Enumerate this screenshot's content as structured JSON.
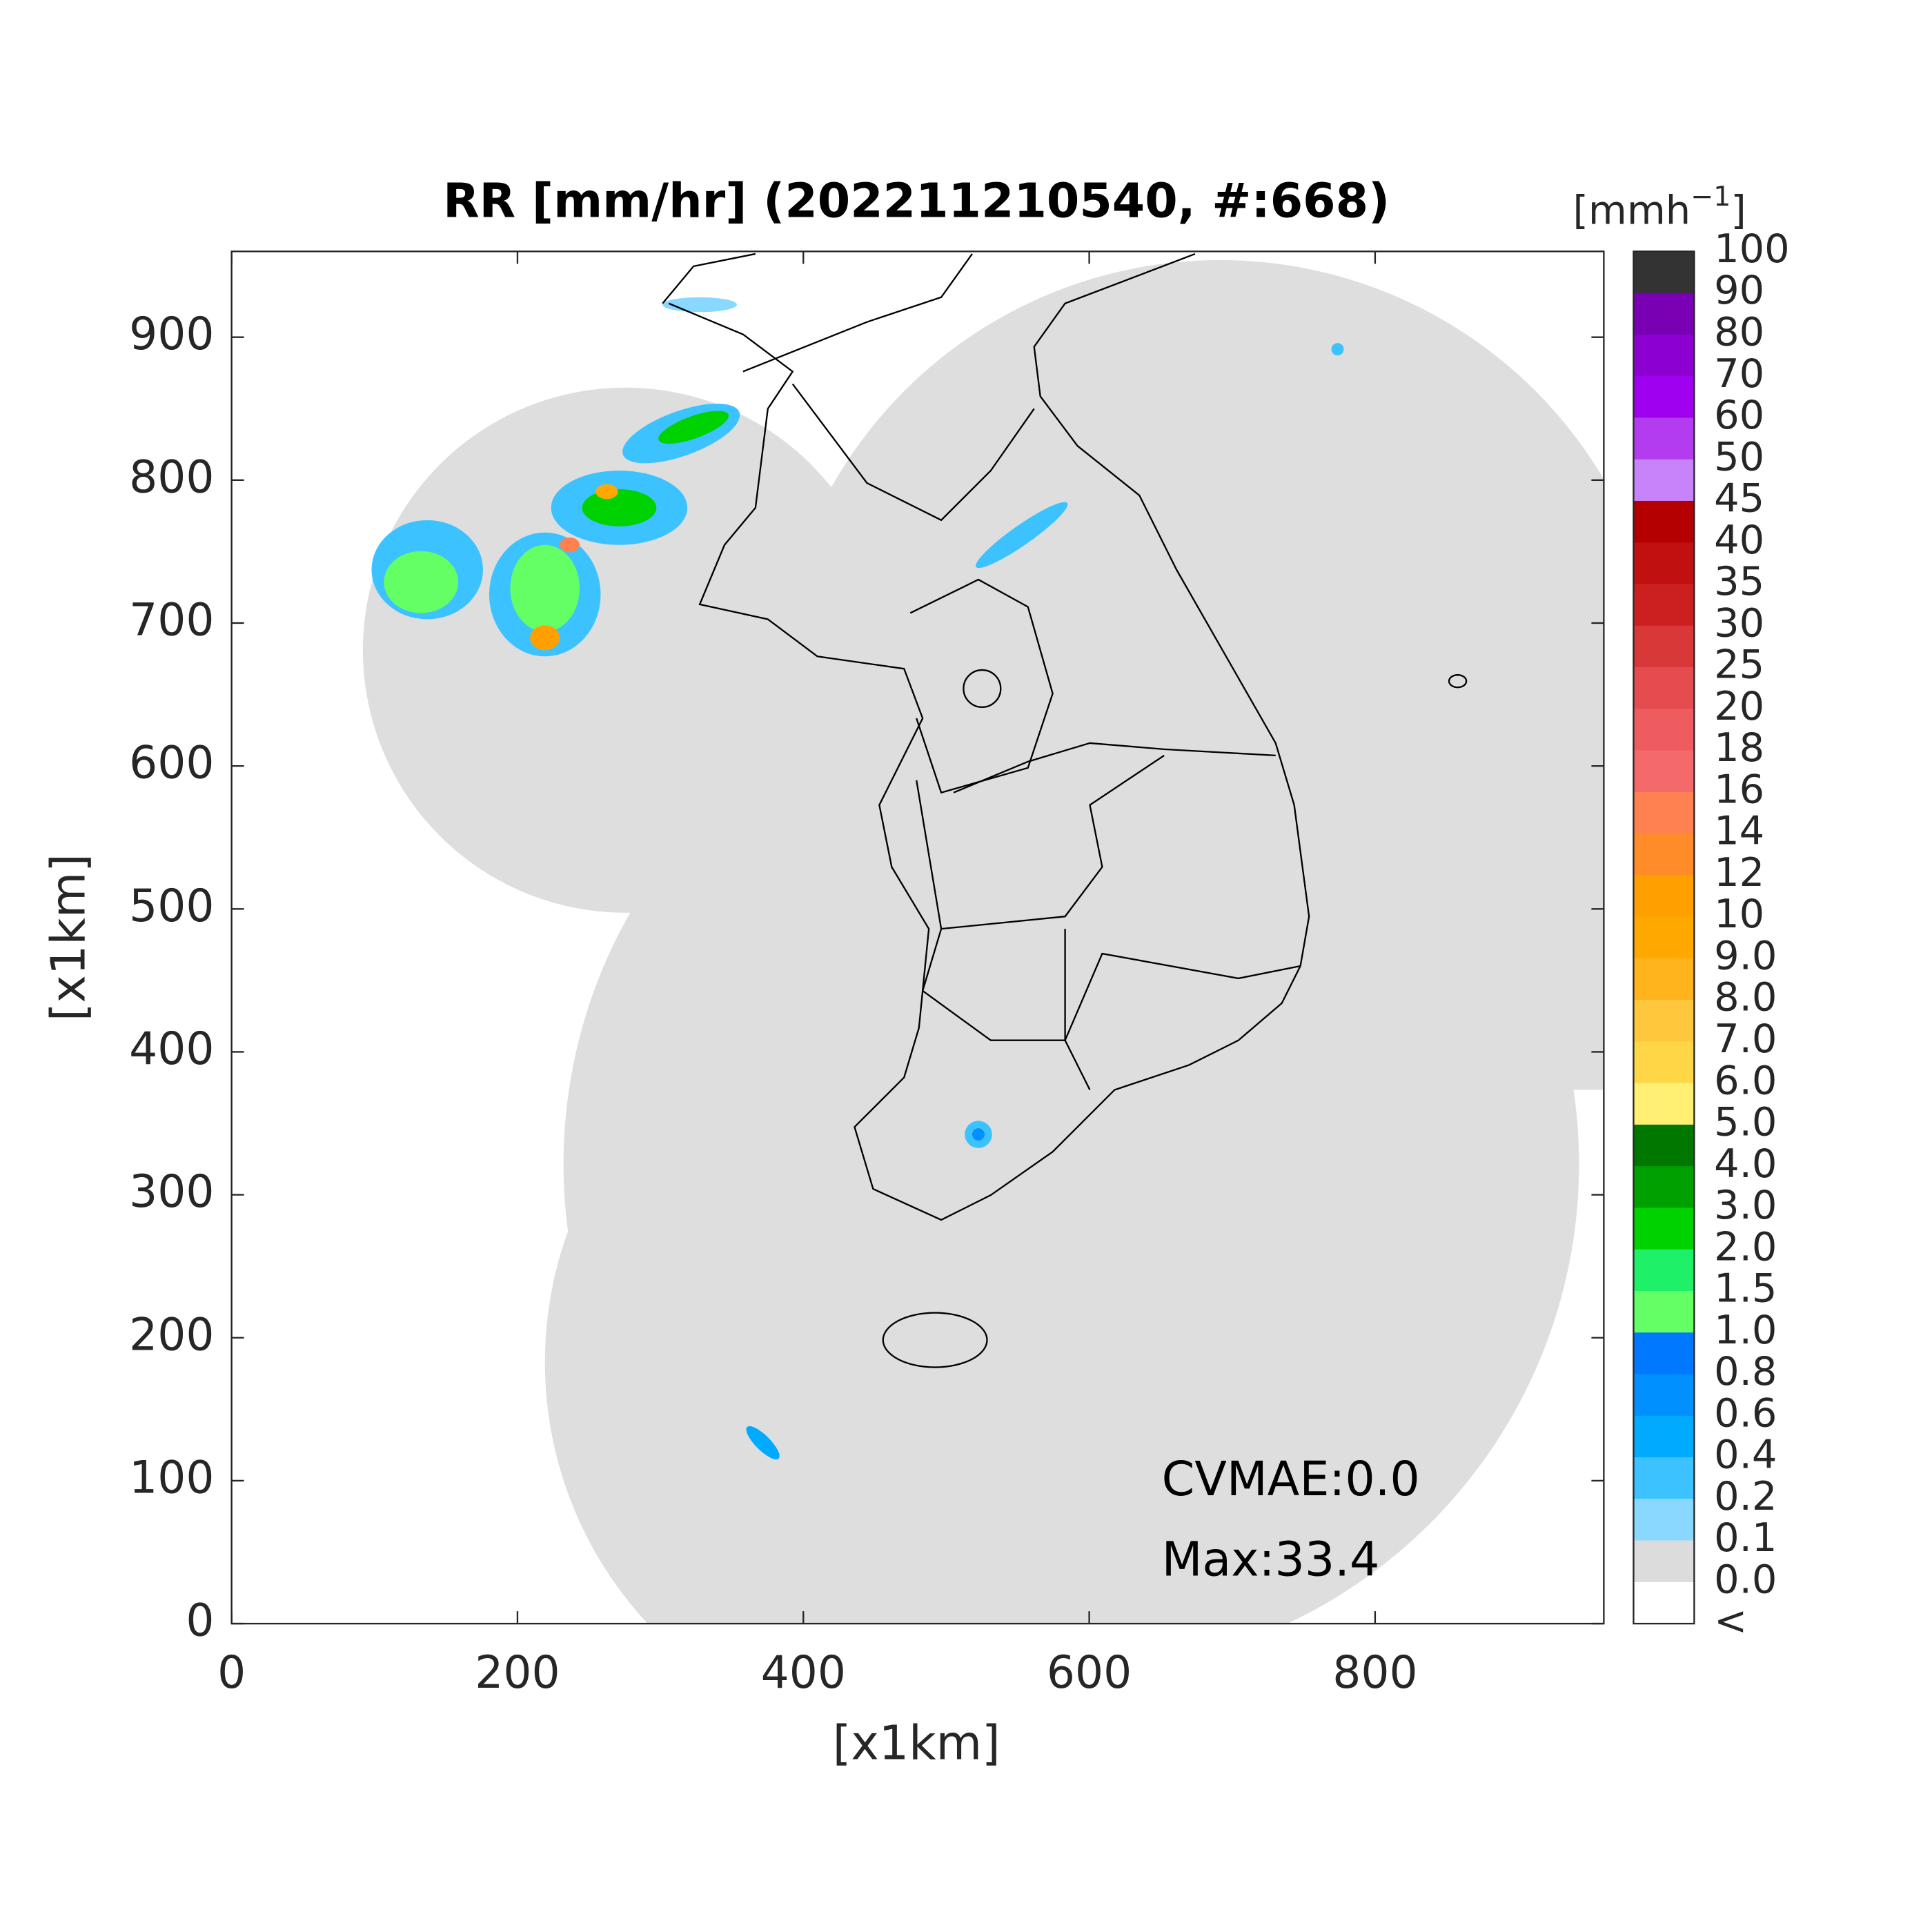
{
  "map": {
    "title": "RR [mm/hr] (202211210540, #:668)",
    "xlabel": "[x1km]",
    "ylabel": "[x1km]",
    "xlim": [
      0,
      960
    ],
    "ylim": [
      0,
      960
    ],
    "xticks": [
      0,
      200,
      400,
      600,
      800
    ],
    "yticks": [
      0,
      100,
      200,
      300,
      400,
      500,
      600,
      700,
      800,
      900
    ],
    "annotations": [
      "CVMAE:0.0",
      "Max:33.4"
    ]
  },
  "colorbar": {
    "unit_base": "[mmh",
    "unit_exponent": "−1",
    "unit_close": "]",
    "labels": [
      "100",
      "90",
      "80",
      "70",
      "60",
      "50",
      "45",
      "40",
      "35",
      "30",
      "25",
      "20",
      "18",
      "16",
      "14",
      "12",
      "10",
      "9.0",
      "8.0",
      "7.0",
      "6.0",
      "5.0",
      "4.0",
      "3.0",
      "2.0",
      "1.5",
      "1.0",
      "0.8",
      "0.6",
      "0.4",
      "0.2",
      "0.1",
      "0.0",
      "<"
    ],
    "colors": [
      "#333333",
      "#7a00b4",
      "#8c00d2",
      "#a000f0",
      "#b43cf0",
      "#c882fa",
      "#b40000",
      "#c01010",
      "#cc2020",
      "#d83838",
      "#e44c50",
      "#ee5c60",
      "#f46a6a",
      "#ff8050",
      "#ff8c28",
      "#ffa000",
      "#ffa800",
      "#ffb41e",
      "#ffc83c",
      "#ffd746",
      "#fff073",
      "#007800",
      "#00a000",
      "#00d200",
      "#1ef068",
      "#64ff64",
      "#0078ff",
      "#0090ff",
      "#00aaff",
      "#3cc3ff",
      "#8ad8ff",
      "#dcdcdc",
      "#ffffff"
    ]
  }
}
